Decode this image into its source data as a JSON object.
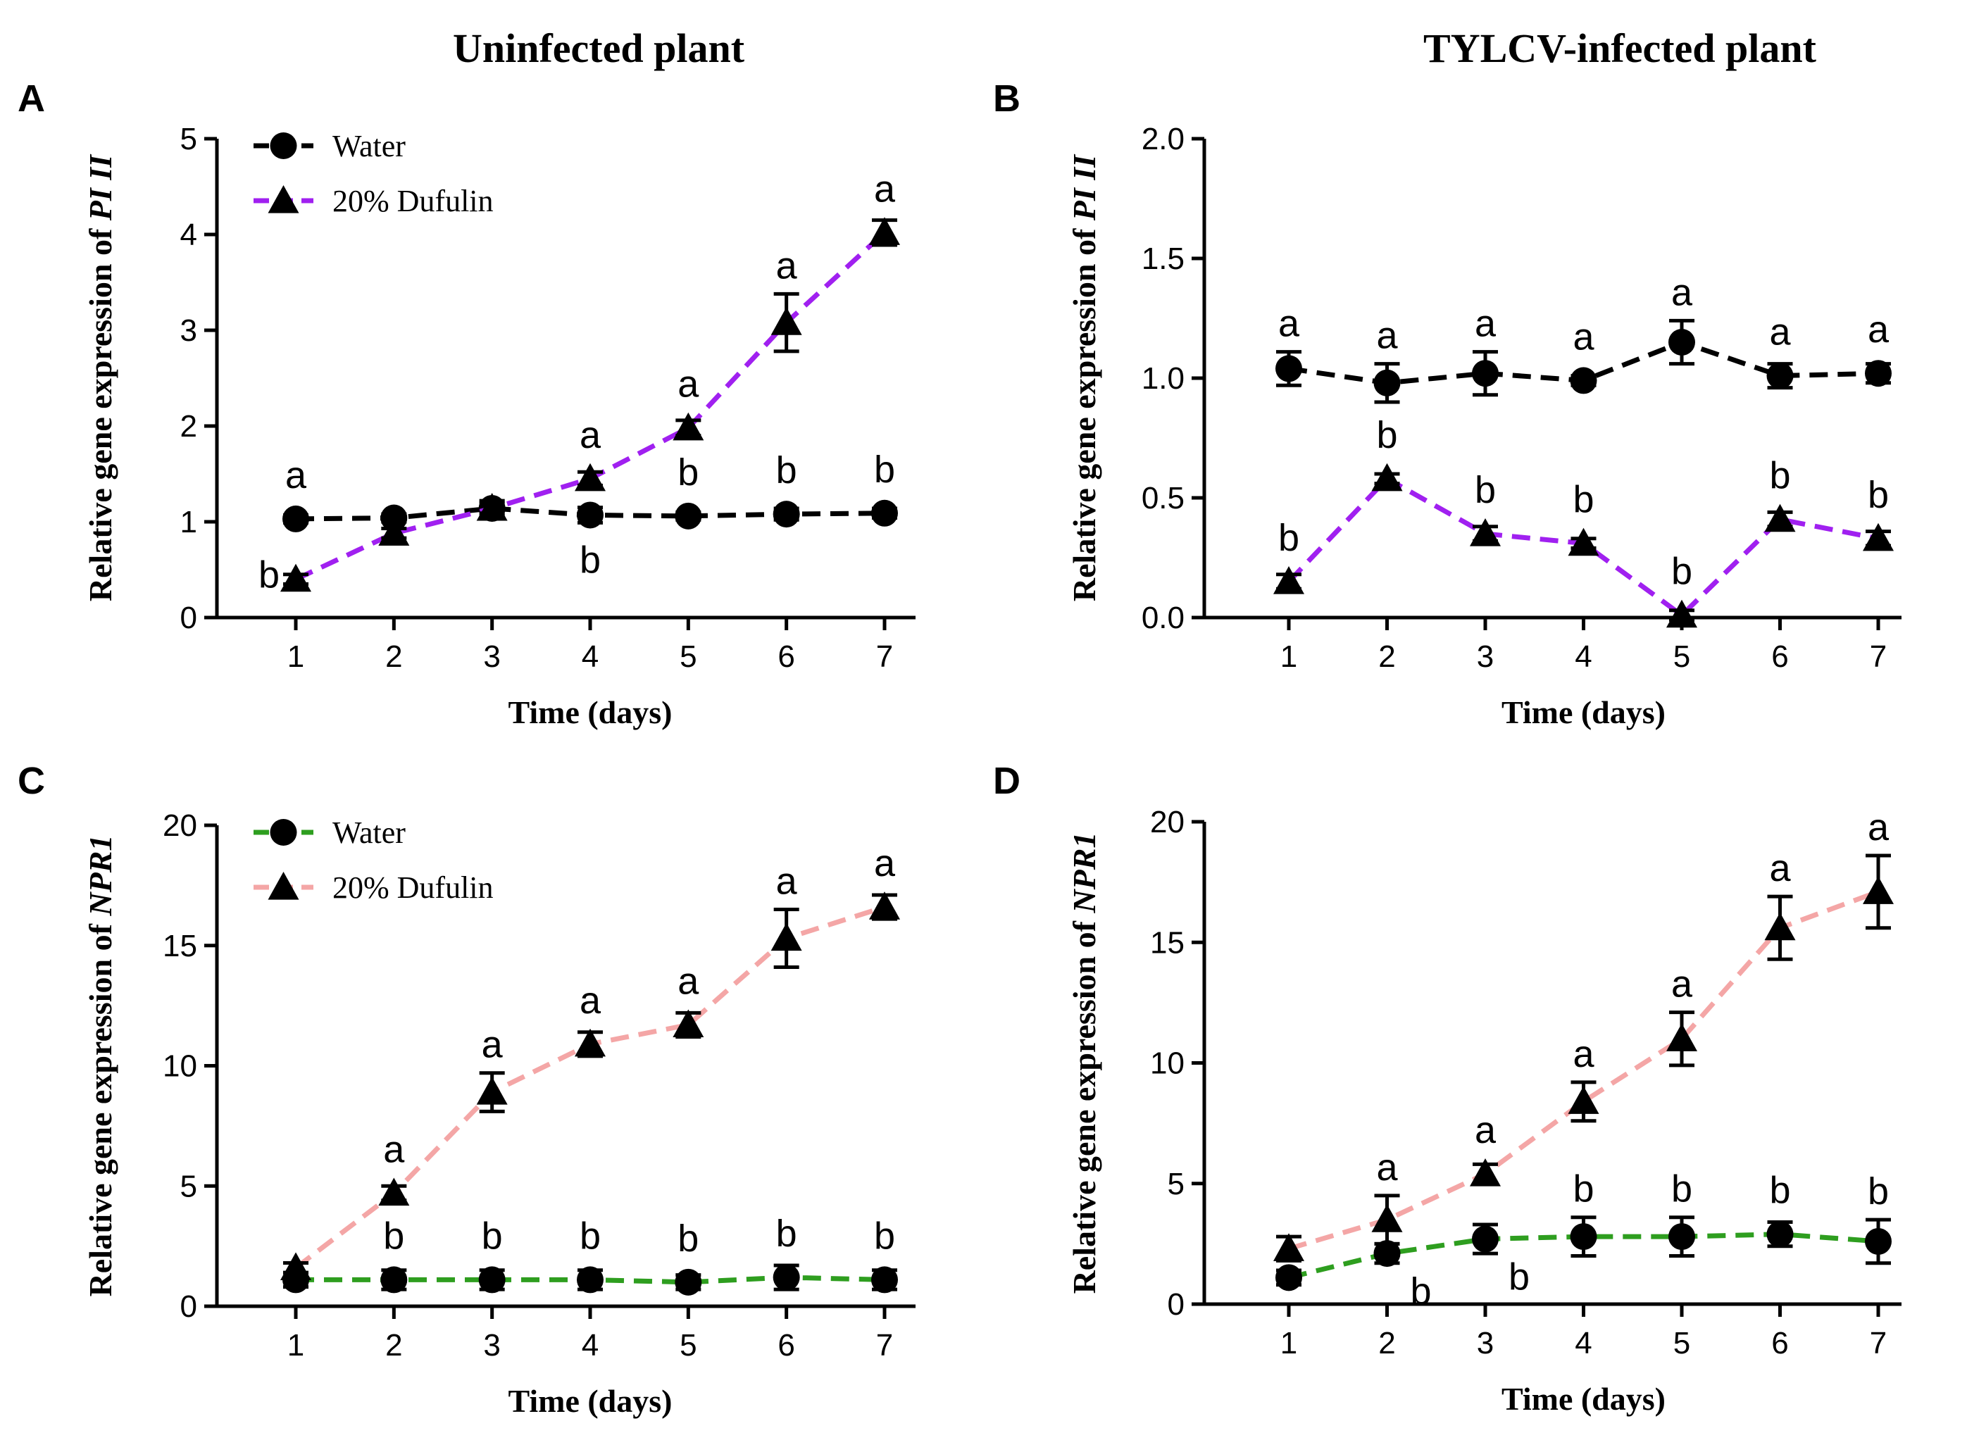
{
  "column_titles": [
    "Uninfected plant",
    "TYLCV-infected plant"
  ],
  "chart_data": [
    {
      "panel": "A",
      "type": "line",
      "gene": "PI II",
      "ylabel_prefix": "Relative gene  expression of ",
      "xlabel": "Time (days)",
      "ylim": [
        0,
        5
      ],
      "yticks": [
        0,
        1,
        2,
        3,
        4,
        5
      ],
      "ytick_labels": [
        "0",
        "1",
        "2",
        "3",
        "4",
        "5"
      ],
      "x": [
        1,
        2,
        3,
        4,
        5,
        6,
        7
      ],
      "xtick_labels": [
        "1",
        "2",
        "3",
        "4",
        "5",
        "6",
        "7"
      ],
      "show_legend": true,
      "series": [
        {
          "name": "Water",
          "marker": "circle",
          "color": "#000000",
          "values": [
            1.03,
            1.04,
            1.14,
            1.07,
            1.06,
            1.08,
            1.09
          ],
          "errors": [
            0.04,
            0.04,
            0.08,
            0.08,
            0.04,
            0.06,
            0.05
          ],
          "letters": [
            "a",
            "",
            "",
            "b",
            "b",
            "b",
            "b"
          ],
          "letter_pos": [
            "above",
            "",
            "",
            "below",
            "above",
            "above",
            "above"
          ]
        },
        {
          "name": "20% Dufulin",
          "marker": "triangle",
          "color": "#a020f0",
          "values": [
            0.4,
            0.88,
            1.14,
            1.45,
            1.98,
            3.08,
            4.02
          ],
          "errors": [
            0.05,
            0.05,
            0.05,
            0.07,
            0.08,
            0.3,
            0.13
          ],
          "letters": [
            "b",
            "",
            "",
            "a",
            "a",
            "a",
            "a"
          ],
          "letter_pos": [
            "left",
            "",
            "",
            "above",
            "above",
            "above",
            "above"
          ]
        }
      ]
    },
    {
      "panel": "B",
      "type": "line",
      "gene": "PI II",
      "ylabel_prefix": "Relative gene  expression of ",
      "xlabel": "Time (days)",
      "ylim": [
        0,
        2
      ],
      "yticks": [
        0,
        0.5,
        1,
        1.5,
        2
      ],
      "ytick_labels": [
        "0.0",
        "0.5",
        "1.0",
        "1.5",
        "2.0"
      ],
      "x": [
        1,
        2,
        3,
        4,
        5,
        6,
        7
      ],
      "xtick_labels": [
        "1",
        "2",
        "3",
        "4",
        "5",
        "6",
        "7"
      ],
      "show_legend": false,
      "series": [
        {
          "name": "Water",
          "marker": "circle",
          "color": "#000000",
          "values": [
            1.04,
            0.98,
            1.02,
            0.99,
            1.15,
            1.01,
            1.02
          ],
          "errors": [
            0.07,
            0.08,
            0.09,
            0.02,
            0.09,
            0.05,
            0.04
          ],
          "letters": [
            "a",
            "a",
            "a",
            "a",
            "a",
            "a",
            "a"
          ],
          "letter_pos": [
            "above",
            "above",
            "above",
            "above",
            "above",
            "above",
            "above"
          ]
        },
        {
          "name": "20% Dufulin",
          "marker": "triangle",
          "color": "#a020f0",
          "values": [
            0.15,
            0.58,
            0.35,
            0.31,
            0.01,
            0.41,
            0.33
          ],
          "errors": [
            0.03,
            0.02,
            0.03,
            0.02,
            0.02,
            0.03,
            0.03
          ],
          "letters": [
            "b",
            "b",
            "b",
            "b",
            "b",
            "b",
            "b"
          ],
          "letter_pos": [
            "above",
            "above",
            "above",
            "above",
            "above",
            "above",
            "above"
          ]
        }
      ]
    },
    {
      "panel": "C",
      "type": "line",
      "gene": "NPR1",
      "ylabel_prefix": "Relative gene  expression of ",
      "xlabel": "Time (days)",
      "ylim": [
        0,
        20
      ],
      "yticks": [
        0,
        5,
        10,
        15,
        20
      ],
      "ytick_labels": [
        "0",
        "5",
        "10",
        "15",
        "20"
      ],
      "x": [
        1,
        2,
        3,
        4,
        5,
        6,
        7
      ],
      "xtick_labels": [
        "1",
        "2",
        "3",
        "4",
        "5",
        "6",
        "7"
      ],
      "show_legend": true,
      "series": [
        {
          "name": "Water",
          "marker": "circle",
          "color": "#2e9e1f",
          "values": [
            1.1,
            1.1,
            1.1,
            1.1,
            1.0,
            1.2,
            1.1
          ],
          "errors": [
            0.3,
            0.4,
            0.4,
            0.4,
            0.3,
            0.5,
            0.4
          ],
          "letters": [
            "",
            "b",
            "b",
            "b",
            "b",
            "b",
            "b"
          ],
          "letter_pos": [
            "",
            "above",
            "above",
            "above",
            "above",
            "above",
            "above"
          ]
        },
        {
          "name": "20% Dufulin",
          "marker": "triangle",
          "color": "#f4a6a6",
          "values": [
            1.6,
            4.7,
            8.9,
            10.9,
            11.7,
            15.3,
            16.6
          ],
          "errors": [
            0.2,
            0.3,
            0.8,
            0.5,
            0.5,
            1.2,
            0.5
          ],
          "letters": [
            "",
            "a",
            "a",
            "a",
            "a",
            "a",
            "a"
          ],
          "letter_pos": [
            "",
            "above",
            "above",
            "above",
            "above",
            "above",
            "above"
          ]
        }
      ]
    },
    {
      "panel": "D",
      "type": "line",
      "gene": "NPR1",
      "ylabel_prefix": "Relative gene  expression of ",
      "xlabel": "Time (days)",
      "ylim": [
        0,
        20
      ],
      "yticks": [
        0,
        5,
        10,
        15,
        20
      ],
      "ytick_labels": [
        "0",
        "5",
        "10",
        "15",
        "20"
      ],
      "x": [
        1,
        2,
        3,
        4,
        5,
        6,
        7
      ],
      "xtick_labels": [
        "1",
        "2",
        "3",
        "4",
        "5",
        "6",
        "7"
      ],
      "show_legend": false,
      "series": [
        {
          "name": "Water",
          "marker": "circle",
          "color": "#2e9e1f",
          "values": [
            1.1,
            2.1,
            2.7,
            2.8,
            2.8,
            2.9,
            2.6
          ],
          "errors": [
            0.3,
            0.4,
            0.6,
            0.8,
            0.8,
            0.5,
            0.9
          ],
          "letters": [
            "",
            "b",
            "b",
            "b",
            "b",
            "b",
            "b"
          ],
          "letter_pos": [
            "",
            "below-right",
            "below-right",
            "above",
            "above",
            "above",
            "above"
          ]
        },
        {
          "name": "20% Dufulin",
          "marker": "triangle",
          "color": "#f4a6a6",
          "values": [
            2.3,
            3.5,
            5.4,
            8.4,
            11.0,
            15.6,
            17.1
          ],
          "errors": [
            0.5,
            1.0,
            0.4,
            0.8,
            1.1,
            1.3,
            1.5
          ],
          "letters": [
            "",
            "a",
            "a",
            "a",
            "a",
            "a",
            "a"
          ],
          "letter_pos": [
            "",
            "above",
            "above",
            "above",
            "above",
            "above",
            "above"
          ]
        }
      ]
    }
  ]
}
